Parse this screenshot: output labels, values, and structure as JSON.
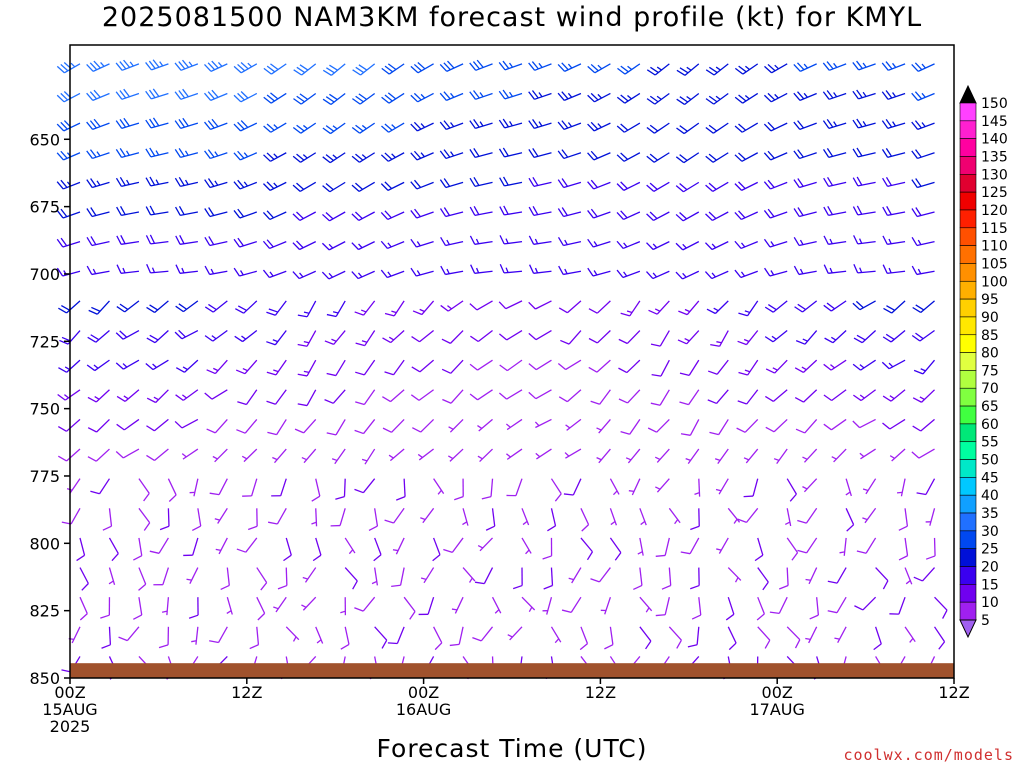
{
  "chart_data": {
    "type": "wind-barb-profile",
    "title": "2025081500 NAM3KM forecast wind profile (kt) for KMYL",
    "xlabel": "Forecast Time (UTC)",
    "ylabel": "",
    "y_axis": {
      "ticks": [
        "650",
        "675",
        "700",
        "725",
        "750",
        "775",
        "800",
        "825",
        "850"
      ],
      "tick_values": [
        650,
        675,
        700,
        725,
        750,
        775,
        800,
        825,
        850
      ],
      "range_mb": [
        615,
        850
      ],
      "inverted": true
    },
    "x_axis": {
      "range_hours": [
        0,
        60
      ],
      "ticks": [
        {
          "hour": 0,
          "line1": "00Z",
          "line2": "15AUG",
          "line3": "2025"
        },
        {
          "hour": 12,
          "line1": "12Z",
          "line2": "",
          "line3": ""
        },
        {
          "hour": 24,
          "line1": "00Z",
          "line2": "16AUG",
          "line3": ""
        },
        {
          "hour": 36,
          "line1": "12Z",
          "line2": "",
          "line3": ""
        },
        {
          "hour": 48,
          "line1": "00Z",
          "line2": "17AUG",
          "line3": ""
        },
        {
          "hour": 60,
          "line1": "12Z",
          "line2": "",
          "line3": ""
        }
      ]
    },
    "colorbar": {
      "labels": [
        "5",
        "10",
        "15",
        "20",
        "25",
        "30",
        "35",
        "40",
        "45",
        "50",
        "55",
        "60",
        "65",
        "70",
        "75",
        "80",
        "85",
        "90",
        "95",
        "100",
        "105",
        "110",
        "115",
        "120",
        "125",
        "130",
        "135",
        "140",
        "145",
        "150"
      ],
      "colors": [
        "#a020f0",
        "#7000f0",
        "#3a00f0",
        "#0010d8",
        "#0048f0",
        "#2070ff",
        "#10a0ff",
        "#00c8ff",
        "#00e8c8",
        "#00ffa0",
        "#00e878",
        "#40ff40",
        "#80ff40",
        "#b0ff40",
        "#e0ff40",
        "#ffff00",
        "#ffe800",
        "#ffd000",
        "#ffb000",
        "#ff9000",
        "#ff7000",
        "#ff5000",
        "#ff2000",
        "#f00000",
        "#e00030",
        "#f00070",
        "#ff00a0",
        "#ff20d0",
        "#ff40ff",
        "#e040ff"
      ],
      "low_arrow_color": "#a060f0",
      "high_arrow_color": "#000000"
    },
    "terrain": {
      "color": "#a0522d",
      "top_mb_approx": 844.5
    },
    "wind_regimes": [
      {
        "levels_mb": [
          620,
          700
        ],
        "hours": [
          0,
          60
        ],
        "speed_kt": [
          15,
          35
        ],
        "direction": "westerly to southwesterly"
      },
      {
        "levels_mb": [
          700,
          775
        ],
        "hours": [
          0,
          60
        ],
        "speed_kt": [
          5,
          25
        ],
        "direction": "southwesterly"
      },
      {
        "levels_mb": [
          775,
          845
        ],
        "hours": [
          0,
          60
        ],
        "speed_kt": [
          5,
          12
        ],
        "direction": "variable, mostly southerly"
      }
    ]
  },
  "footer": {
    "credit": "coolwx.com/models"
  }
}
